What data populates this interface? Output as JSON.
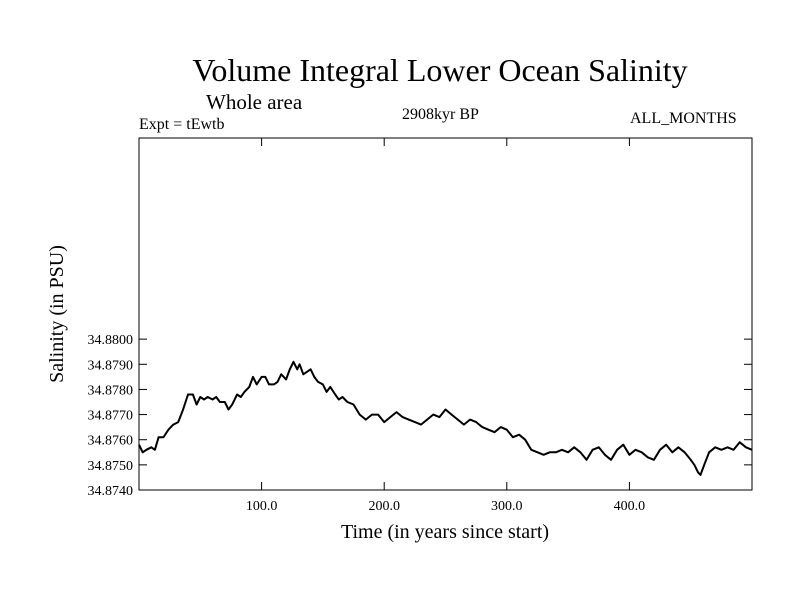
{
  "chart_data": {
    "type": "line",
    "title": "Volume Integral Lower Ocean Salinity",
    "subtitle": "Whole area",
    "left_label": "Expt = tEwtb",
    "center_label": "2908kyr BP",
    "right_label": "ALL_MONTHS",
    "xlabel": "Time (in years since start)",
    "ylabel": "Salinity (in PSU)",
    "xlim": [
      0,
      500
    ],
    "ylim": [
      34.874,
      34.888
    ],
    "x_ticks": [
      100,
      200,
      300,
      400
    ],
    "x_tick_labels": [
      "100.0",
      "200.0",
      "300.0",
      "400.0"
    ],
    "y_ticks": [
      34.874,
      34.875,
      34.876,
      34.877,
      34.878,
      34.879,
      34.88
    ],
    "y_tick_labels": [
      "34.8740",
      "34.8750",
      "34.8760",
      "34.8770",
      "34.8780",
      "34.8790",
      "34.8800"
    ],
    "grid": false,
    "series": [
      {
        "name": "salinity",
        "color": "#000000",
        "x": [
          0,
          3,
          6,
          10,
          13,
          16,
          20,
          24,
          28,
          32,
          36,
          40,
          44,
          47,
          50,
          53,
          56,
          60,
          63,
          66,
          70,
          73,
          76,
          80,
          83,
          86,
          90,
          93,
          96,
          100,
          103,
          106,
          110,
          113,
          116,
          120,
          123,
          126,
          129,
          131,
          134,
          137,
          140,
          143,
          146,
          150,
          153,
          156,
          160,
          163,
          166,
          170,
          175,
          180,
          185,
          190,
          195,
          200,
          205,
          210,
          215,
          220,
          225,
          230,
          235,
          240,
          245,
          250,
          255,
          260,
          265,
          270,
          275,
          280,
          285,
          290,
          295,
          300,
          305,
          310,
          315,
          320,
          325,
          330,
          335,
          340,
          345,
          350,
          355,
          360,
          365,
          370,
          375,
          380,
          385,
          390,
          395,
          400,
          405,
          410,
          415,
          420,
          425,
          430,
          435,
          440,
          445,
          450,
          453,
          456,
          458,
          461,
          465,
          470,
          475,
          480,
          485,
          490,
          495,
          500
        ],
        "values": [
          34.8758,
          34.8755,
          34.8756,
          34.8757,
          34.8756,
          34.8761,
          34.8761,
          34.8764,
          34.8766,
          34.8767,
          34.8772,
          34.8778,
          34.8778,
          34.8774,
          34.8777,
          34.8776,
          34.8777,
          34.8776,
          34.8777,
          34.8775,
          34.8775,
          34.8772,
          34.8774,
          34.8778,
          34.8777,
          34.8779,
          34.8781,
          34.8785,
          34.8782,
          34.8785,
          34.8785,
          34.8782,
          34.8782,
          34.8783,
          34.8786,
          34.8784,
          34.8788,
          34.8791,
          34.8788,
          34.879,
          34.8786,
          34.8787,
          34.8788,
          34.8785,
          34.8783,
          34.8782,
          34.8779,
          34.8781,
          34.8778,
          34.8776,
          34.8777,
          34.8775,
          34.8774,
          34.877,
          34.8768,
          34.877,
          34.877,
          34.8767,
          34.8769,
          34.8771,
          34.8769,
          34.8768,
          34.8767,
          34.8766,
          34.8768,
          34.877,
          34.8769,
          34.8772,
          34.877,
          34.8768,
          34.8766,
          34.8768,
          34.8767,
          34.8765,
          34.8764,
          34.8763,
          34.8765,
          34.8764,
          34.8761,
          34.8762,
          34.876,
          34.8756,
          34.8755,
          34.8754,
          34.8755,
          34.8755,
          34.8756,
          34.8755,
          34.8757,
          34.8755,
          34.8752,
          34.8756,
          34.8757,
          34.8754,
          34.8752,
          34.8756,
          34.8758,
          34.8754,
          34.8756,
          34.8755,
          34.8753,
          34.8752,
          34.8756,
          34.8758,
          34.8755,
          34.8757,
          34.8755,
          34.8752,
          34.875,
          34.8747,
          34.8746,
          34.875,
          34.8755,
          34.8757,
          34.8756,
          34.8757,
          34.8756,
          34.8759,
          34.8757,
          34.8756
        ]
      }
    ]
  }
}
